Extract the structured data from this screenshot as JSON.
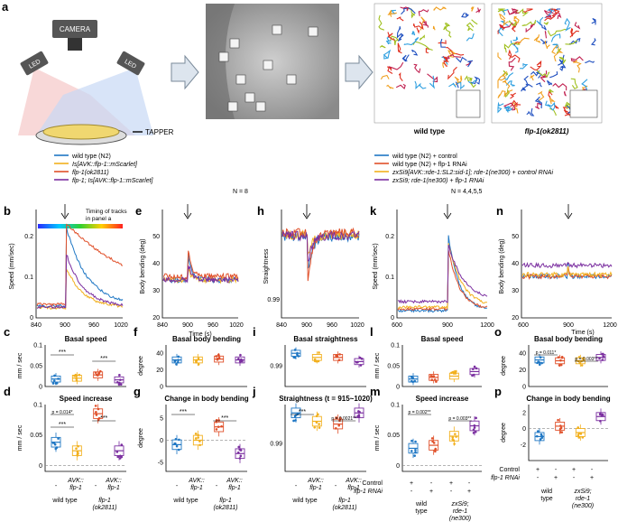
{
  "colors": {
    "wt": "#1f77c4",
    "avk": "#f2b01e",
    "flp": "#e0502a",
    "flp_avk": "#7b2fa0",
    "zx": "#7b2fa0"
  },
  "panel_a": {
    "label": "a",
    "camera": "CAMERA",
    "led_left": "LED",
    "led_right": "LED",
    "tapper": "TAPPER",
    "track_wt": "wild type",
    "track_flp": "flp-1(ok2811)"
  },
  "legend_left": [
    {
      "label": "wild type (N2)",
      "color": "#1f77c4"
    },
    {
      "label": "Is[AVK::flp-1::mScarlet]",
      "color": "#f2b01e"
    },
    {
      "label": "flp-1(ok2811)",
      "color": "#e0502a"
    },
    {
      "label": "flp-1; Is[AVK::flp-1::mScarlet]",
      "color": "#7b2fa0"
    }
  ],
  "legend_right": [
    {
      "label": "wild type (N2) + control",
      "color": "#1f77c4"
    },
    {
      "label": "wild type (N2) + flp-1 RNAi",
      "color": "#e0502a"
    },
    {
      "label": "zxSi9[AVK::rde-1:SL2:sid-1]; rde-1(ne300) + control RNAi",
      "color": "#f2b01e"
    },
    {
      "label": "zxSi9; rde-1(ne300) + flp-1 RNAi",
      "color": "#7b2fa0"
    }
  ],
  "n_left": "N = 8",
  "n_right": "N = 4,4,5,5",
  "timing_note_1": "Timing of tracks",
  "timing_note_2": "in panel a",
  "chart_data": [
    {
      "panel": "b",
      "type": "line",
      "ylabel": "Speed (mm/sec)",
      "xlabel": "",
      "x_ticks": [
        "840",
        "900",
        "960",
        "1020"
      ],
      "y_ticks": [
        "0",
        "0.1",
        "0.2"
      ],
      "tap_time": 900
    },
    {
      "panel": "e",
      "type": "line",
      "ylabel": "Body bending (deg)",
      "xlabel": "Time (s)",
      "x_ticks": [
        "840",
        "900",
        "960",
        "1020"
      ],
      "y_ticks": [
        "20",
        "30",
        "40",
        "50"
      ],
      "tap_time": 900
    },
    {
      "panel": "h",
      "type": "line",
      "ylabel": "Straightness",
      "xlabel": "",
      "x_ticks": [
        "840",
        "900",
        "960",
        "1020"
      ],
      "y_ticks": [
        "0.99"
      ],
      "tap_time": 900
    },
    {
      "panel": "k",
      "type": "line",
      "ylabel": "Speed (mm/sec)",
      "xlabel": "",
      "x_ticks": [
        "600",
        "900",
        "1200"
      ],
      "y_ticks": [
        "0",
        "0.1",
        "0.2"
      ],
      "tap_time": 900
    },
    {
      "panel": "n",
      "type": "line",
      "ylabel": "Body bending (deg)",
      "xlabel": "Time (s)",
      "x_ticks": [
        "600",
        "900",
        "1200"
      ],
      "y_ticks": [
        "20",
        "30",
        "40",
        "50"
      ],
      "tap_time": 900
    },
    {
      "panel": "c",
      "type": "box",
      "title": "Basal speed",
      "ylabel": "mm / sec",
      "y_ticks": [
        "0",
        "0.05",
        "0.1"
      ],
      "ylim": [
        0,
        0.1
      ],
      "groups": [
        "wild type",
        "AVK::flp-1",
        "flp-1(ok2811)",
        "flp-1; AVK::flp-1"
      ],
      "medians": [
        0.018,
        0.02,
        0.028,
        0.016
      ],
      "sig": [
        "***",
        "***"
      ]
    },
    {
      "panel": "d",
      "type": "box",
      "title": "Speed increase",
      "ylabel": "mm / sec",
      "y_ticks": [
        "0",
        "0.05",
        "0.1"
      ],
      "ylim": [
        -0.01,
        0.1
      ],
      "groups": [
        "wild type",
        "AVK::flp-1",
        "flp-1(ok2811)",
        "flp-1; AVK::flp-1"
      ],
      "medians": [
        0.038,
        0.024,
        0.085,
        0.024
      ],
      "sig": [
        "p = 0.014*",
        "***",
        "***"
      ]
    },
    {
      "panel": "f",
      "type": "box",
      "title": "Basal body bending",
      "ylabel": "degree",
      "y_ticks": [
        "0",
        "20",
        "40"
      ],
      "ylim": [
        0,
        50
      ],
      "groups": [
        "wild type",
        "AVK::flp-1",
        "flp-1(ok2811)",
        "flp-1; AVK::flp-1"
      ],
      "medians": [
        32,
        32,
        33,
        32
      ],
      "sig": []
    },
    {
      "panel": "g",
      "type": "box",
      "title": "Change in body bending",
      "ylabel": "degree",
      "y_ticks": [
        "-5",
        "0",
        "5"
      ],
      "ylim": [
        -7,
        8
      ],
      "groups": [
        "wild type",
        "AVK::flp-1",
        "flp-1(ok2811)",
        "flp-1; AVK::flp-1"
      ],
      "medians": [
        -1,
        0,
        3,
        -3
      ],
      "sig": [
        "***",
        "***"
      ]
    },
    {
      "panel": "i",
      "type": "box",
      "title": "Basal straightness",
      "ylabel": "",
      "y_ticks": [
        "0.99"
      ],
      "ylim": [
        0.985,
        0.995
      ],
      "groups": [
        "wild type",
        "AVK::flp-1",
        "flp-1(ok2811)",
        "flp-1; AVK::flp-1"
      ],
      "medians": [
        0.993,
        0.992,
        0.992,
        0.991
      ],
      "sig": []
    },
    {
      "panel": "j",
      "type": "box",
      "title": "Straightness (t = 915~1020)",
      "ylabel": "",
      "y_ticks": [
        "0.99"
      ],
      "ylim": [
        0.985,
        0.997
      ],
      "groups": [
        "wild type",
        "AVK::flp-1",
        "flp-1(ok2811)",
        "flp-1; AVK::flp-1"
      ],
      "medians": [
        0.9955,
        0.994,
        0.9935,
        0.9955
      ],
      "sig": [
        "***",
        "p = 0.0021**"
      ]
    },
    {
      "panel": "l",
      "type": "box",
      "title": "Basal speed",
      "ylabel": "mm / sec",
      "y_ticks": [
        "0",
        "0.05",
        "0.1"
      ],
      "ylim": [
        0,
        0.1
      ],
      "groups": [
        "wt + control",
        "wt + flp-1 RNAi",
        "zxSi9 + control",
        "zxSi9 + flp-1 RNAi"
      ],
      "medians": [
        0.018,
        0.022,
        0.025,
        0.036
      ],
      "sig": []
    },
    {
      "panel": "m",
      "type": "box",
      "title": "Speed increase",
      "ylabel": "mm / sec",
      "y_ticks": [
        "0",
        "0.05",
        "0.1"
      ],
      "ylim": [
        -0.01,
        0.1
      ],
      "groups": [
        "wt + control",
        "wt + flp-1 RNAi",
        "zxSi9 + control",
        "zxSi9 + flp-1 RNAi"
      ],
      "medians": [
        0.028,
        0.033,
        0.048,
        0.065
      ],
      "sig": [
        "p = 0.002**",
        "p = 0.003**"
      ]
    },
    {
      "panel": "o",
      "type": "box",
      "title": "Basal body bending",
      "ylabel": "degree",
      "y_ticks": [
        "0",
        "20",
        "40"
      ],
      "ylim": [
        0,
        50
      ],
      "groups": [
        "wt + control",
        "wt + flp-1 RNAi",
        "zxSi9 + control",
        "zxSi9 + flp-1 RNAi"
      ],
      "medians": [
        32,
        31,
        31,
        35
      ],
      "sig": [
        "p = 0.011*",
        "p = 0.003**"
      ]
    },
    {
      "panel": "p",
      "type": "box",
      "title": "Change in body bending",
      "ylabel": "degree",
      "y_ticks": [
        "-2",
        "0",
        "2"
      ],
      "ylim": [
        -4,
        3
      ],
      "groups": [
        "wt + control",
        "wt + flp-1 RNAi",
        "zxSi9 + control",
        "zxSi9 + flp-1 RNAi"
      ],
      "medians": [
        -1,
        0.3,
        -0.5,
        1.5
      ],
      "sig": []
    }
  ],
  "xgroups_left": {
    "avk_1": "AVK::",
    "avk_2": "flp-1",
    "avk_3": "AVK::",
    "avk_4": "flp-1",
    "dash": "-",
    "wt": "wild type",
    "flp_1": "flp-1",
    "flp_2": "(ok2811)"
  },
  "xgroups_right": {
    "control": "Control",
    "rnai": "flp-1 RNAi",
    "plus": "+",
    "minus": "-",
    "wt_1": "wild",
    "wt_2": "type",
    "zx_1": "zxSi9;",
    "zx_2": "rde-1",
    "zx_3": "(ne300)"
  }
}
